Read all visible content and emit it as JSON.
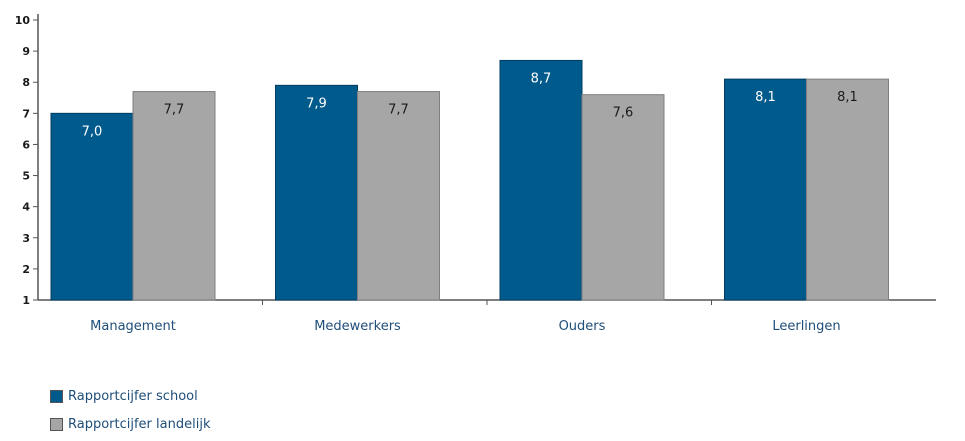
{
  "chart_data": {
    "type": "bar",
    "categories": [
      "Management",
      "Medewerkers",
      "Ouders",
      "Leerlingen"
    ],
    "series": [
      {
        "name": "Rapportcijfer school",
        "color": "#005a8c",
        "values": [
          7.0,
          7.9,
          8.7,
          8.1
        ],
        "labels": [
          "7,0",
          "7,9",
          "8,7",
          "8,1"
        ],
        "label_color": "#ffffff"
      },
      {
        "name": "Rapportcijfer landelijk",
        "color": "#a6a6a6",
        "values": [
          7.7,
          7.7,
          7.6,
          8.1
        ],
        "labels": [
          "7,7",
          "7,7",
          "7,6",
          "8,1"
        ],
        "label_color": "#1a1a1a"
      }
    ],
    "ylim": [
      1,
      10
    ],
    "yticks": [
      "1",
      "2",
      "3",
      "4",
      "5",
      "6",
      "7",
      "8",
      "9",
      "10"
    ],
    "grid": false,
    "legend_position": "bottom-left"
  }
}
